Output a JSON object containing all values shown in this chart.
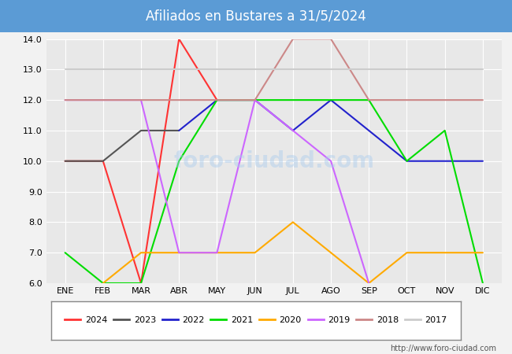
{
  "title": "Afiliados en Bustares a 31/5/2024",
  "title_bg_color": "#5b9bd5",
  "title_text_color": "#ffffff",
  "ylim": [
    6.0,
    14.0
  ],
  "yticks": [
    6.0,
    7.0,
    8.0,
    9.0,
    10.0,
    11.0,
    12.0,
    13.0,
    14.0
  ],
  "months": [
    "ENE",
    "FEB",
    "MAR",
    "ABR",
    "MAY",
    "JUN",
    "JUL",
    "AGO",
    "SEP",
    "OCT",
    "NOV",
    "DIC"
  ],
  "url": "http://www.foro-ciudad.com",
  "series": {
    "2024": {
      "color": "#ff3333",
      "data": [
        10,
        10,
        6,
        14,
        12,
        null,
        null,
        null,
        null,
        null,
        null,
        null
      ]
    },
    "2023": {
      "color": "#555555",
      "data": [
        10,
        10,
        11,
        11,
        null,
        null,
        null,
        null,
        null,
        null,
        null,
        null
      ]
    },
    "2022": {
      "color": "#2222cc",
      "data": [
        null,
        null,
        null,
        11,
        12,
        12,
        11,
        12,
        11,
        10,
        10,
        10
      ]
    },
    "2021": {
      "color": "#00dd00",
      "data": [
        7,
        6,
        6,
        10,
        12,
        12,
        12,
        12,
        12,
        10,
        11,
        6
      ]
    },
    "2020": {
      "color": "#ffaa00",
      "data": [
        null,
        6,
        7,
        7,
        7,
        7,
        8,
        7,
        6,
        7,
        7,
        7
      ]
    },
    "2019": {
      "color": "#cc66ff",
      "data": [
        12,
        12,
        12,
        7,
        7,
        12,
        11,
        10,
        6,
        null,
        null,
        null
      ]
    },
    "2018": {
      "color": "#cc8888",
      "data": [
        12,
        12,
        12,
        12,
        12,
        12,
        14,
        14,
        12,
        12,
        12,
        12
      ]
    },
    "2017": {
      "color": "#cccccc",
      "data": [
        13,
        13,
        13,
        13,
        13,
        13,
        13,
        13,
        13,
        13,
        13,
        13
      ]
    }
  },
  "background_color": "#f2f2f2",
  "plot_bg_color": "#e8e8e8",
  "grid_color": "#ffffff",
  "legend_order": [
    "2024",
    "2023",
    "2022",
    "2021",
    "2020",
    "2019",
    "2018",
    "2017"
  ]
}
